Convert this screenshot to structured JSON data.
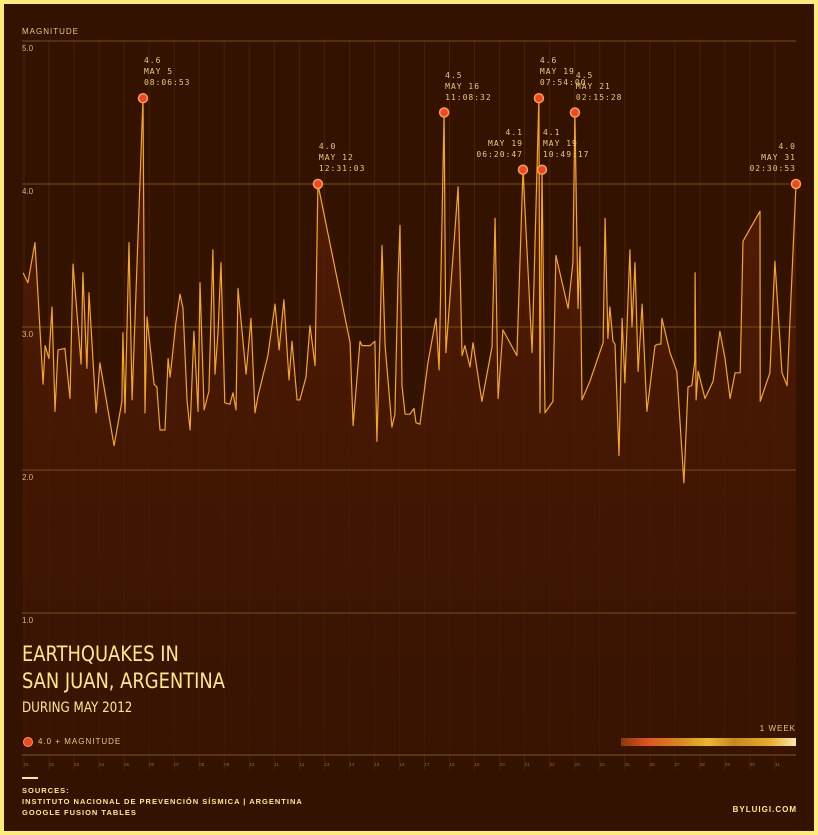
{
  "chart_data": {
    "type": "line",
    "title": "EARTHQUAKES IN SAN JUAN, ARGENTINA",
    "title_lines": [
      "EARTHQUAKES IN",
      "SAN JUAN, ARGENTINA"
    ],
    "subtitle": "DURING MAY 2012",
    "ylabel": "MAGNITUDE",
    "ylim": [
      1.0,
      5.0
    ],
    "yticks": [
      "1.0",
      "2.0",
      "3.0",
      "4.0",
      "5.0"
    ],
    "xticks": [
      "01",
      "02",
      "03",
      "04",
      "05",
      "06",
      "07",
      "08",
      "09",
      "10",
      "11",
      "12",
      "13",
      "14",
      "15",
      "16",
      "17",
      "18",
      "19",
      "20",
      "21",
      "22",
      "23",
      "24",
      "25",
      "26",
      "27",
      "28",
      "29",
      "30",
      "31"
    ],
    "grid": true,
    "colors": {
      "line": "#f5a623",
      "highlight": "#f2462a",
      "background": "#331300",
      "frame": "#fdeb7a",
      "text": "#fde883"
    },
    "series": [
      {
        "points": [
          [
            0.61,
            3.38
          ],
          [
            0.8,
            3.31
          ],
          [
            1.08,
            3.59
          ],
          [
            1.4,
            2.6
          ],
          [
            1.48,
            2.87
          ],
          [
            1.63,
            2.78
          ],
          [
            1.75,
            3.14
          ],
          [
            1.87,
            2.41
          ],
          [
            1.99,
            2.84
          ],
          [
            2.26,
            2.85
          ],
          [
            2.46,
            2.5
          ],
          [
            2.58,
            3.44
          ],
          [
            2.9,
            2.74
          ],
          [
            2.97,
            3.38
          ],
          [
            3.13,
            2.71
          ],
          [
            3.21,
            3.24
          ],
          [
            3.49,
            2.4
          ],
          [
            3.64,
            2.75
          ],
          [
            4.2,
            2.17
          ],
          [
            4.51,
            2.48
          ],
          [
            4.55,
            2.96
          ],
          [
            4.63,
            2.4
          ],
          [
            4.79,
            3.59
          ],
          [
            4.91,
            2.49
          ],
          [
            5.34,
            4.6
          ],
          [
            5.42,
            2.4
          ],
          [
            5.5,
            3.07
          ],
          [
            5.78,
            2.6
          ],
          [
            5.89,
            2.58
          ],
          [
            6.01,
            2.28
          ],
          [
            6.21,
            2.28
          ],
          [
            6.33,
            2.78
          ],
          [
            6.41,
            2.65
          ],
          [
            6.64,
            3.03
          ],
          [
            6.8,
            3.23
          ],
          [
            6.92,
            3.13
          ],
          [
            7.08,
            2.48
          ],
          [
            7.2,
            2.28
          ],
          [
            7.35,
            2.97
          ],
          [
            7.51,
            2.41
          ],
          [
            7.59,
            3.31
          ],
          [
            7.75,
            2.42
          ],
          [
            7.94,
            2.55
          ],
          [
            8.1,
            3.54
          ],
          [
            8.18,
            2.67
          ],
          [
            8.3,
            2.96
          ],
          [
            8.42,
            3.45
          ],
          [
            8.57,
            2.47
          ],
          [
            8.77,
            2.46
          ],
          [
            8.89,
            2.54
          ],
          [
            9.01,
            2.42
          ],
          [
            9.09,
            3.27
          ],
          [
            9.41,
            2.67
          ],
          [
            9.6,
            3.06
          ],
          [
            9.76,
            2.4
          ],
          [
            9.88,
            2.52
          ],
          [
            10.27,
            2.8
          ],
          [
            10.55,
            3.16
          ],
          [
            10.71,
            2.84
          ],
          [
            10.9,
            3.19
          ],
          [
            11.1,
            2.63
          ],
          [
            11.22,
            2.9
          ],
          [
            11.42,
            2.49
          ],
          [
            11.53,
            2.49
          ],
          [
            11.77,
            2.65
          ],
          [
            11.93,
            3.01
          ],
          [
            12.13,
            2.73
          ],
          [
            12.24,
            4.0
          ],
          [
            13.51,
            2.89
          ],
          [
            13.63,
            2.31
          ],
          [
            13.9,
            2.9
          ],
          [
            13.98,
            2.87
          ],
          [
            14.3,
            2.87
          ],
          [
            14.49,
            2.9
          ],
          [
            14.57,
            2.2
          ],
          [
            14.69,
            2.94
          ],
          [
            14.77,
            3.57
          ],
          [
            14.89,
            2.87
          ],
          [
            15.16,
            2.3
          ],
          [
            15.28,
            2.39
          ],
          [
            15.4,
            3.33
          ],
          [
            15.48,
            3.71
          ],
          [
            15.56,
            2.59
          ],
          [
            15.68,
            2.39
          ],
          [
            15.87,
            2.39
          ],
          [
            16.03,
            2.43
          ],
          [
            16.11,
            2.33
          ],
          [
            16.27,
            2.32
          ],
          [
            16.58,
            2.75
          ],
          [
            16.9,
            3.06
          ],
          [
            17.02,
            2.7
          ],
          [
            17.22,
            4.5
          ],
          [
            17.29,
            2.82
          ],
          [
            17.77,
            3.98
          ],
          [
            17.93,
            2.8
          ],
          [
            18.04,
            2.87
          ],
          [
            18.24,
            2.72
          ],
          [
            18.36,
            2.89
          ],
          [
            18.71,
            2.48
          ],
          [
            19.11,
            2.86
          ],
          [
            19.23,
            3.76
          ],
          [
            19.35,
            2.5
          ],
          [
            19.54,
            2.98
          ],
          [
            20.09,
            2.8
          ],
          [
            20.33,
            4.1
          ],
          [
            20.69,
            2.82
          ],
          [
            20.96,
            4.6
          ],
          [
            21.0,
            2.4
          ],
          [
            21.08,
            4.1
          ],
          [
            21.2,
            2.4
          ],
          [
            21.51,
            2.48
          ],
          [
            21.63,
            3.5
          ],
          [
            22.11,
            3.13
          ],
          [
            22.3,
            3.45
          ],
          [
            22.38,
            4.5
          ],
          [
            22.5,
            3.13
          ],
          [
            22.58,
            3.56
          ],
          [
            22.66,
            2.49
          ],
          [
            22.97,
            2.62
          ],
          [
            23.49,
            2.89
          ],
          [
            23.57,
            3.76
          ],
          [
            23.68,
            2.92
          ],
          [
            23.76,
            3.14
          ],
          [
            23.88,
            2.9
          ],
          [
            23.96,
            2.88
          ],
          [
            24.12,
            2.1
          ],
          [
            24.24,
            3.06
          ],
          [
            24.35,
            2.61
          ],
          [
            24.55,
            3.54
          ],
          [
            24.63,
            3.0
          ],
          [
            24.75,
            3.45
          ],
          [
            24.87,
            2.69
          ],
          [
            25.03,
            3.16
          ],
          [
            25.22,
            2.41
          ],
          [
            25.54,
            2.87
          ],
          [
            25.66,
            2.88
          ],
          [
            25.77,
            2.88
          ],
          [
            25.81,
            3.06
          ],
          [
            26.13,
            2.82
          ],
          [
            26.4,
            2.69
          ],
          [
            26.68,
            1.91
          ],
          [
            26.84,
            2.58
          ],
          [
            26.99,
            2.59
          ],
          [
            27.11,
            2.76
          ],
          [
            27.12,
            3.38
          ],
          [
            27.16,
            2.49
          ],
          [
            27.24,
            2.69
          ],
          [
            27.51,
            2.5
          ],
          [
            27.83,
            2.62
          ],
          [
            28.1,
            2.97
          ],
          [
            28.3,
            2.78
          ],
          [
            28.5,
            2.5
          ],
          [
            28.7,
            2.68
          ],
          [
            28.9,
            2.68
          ],
          [
            29.01,
            3.6
          ],
          [
            29.68,
            3.81
          ],
          [
            29.69,
            2.48
          ],
          [
            30.07,
            2.68
          ],
          [
            30.27,
            3.46
          ],
          [
            30.55,
            2.68
          ],
          [
            30.75,
            2.59
          ],
          [
            31.1,
            4.0
          ]
        ]
      }
    ],
    "annotations": [
      {
        "mag": "4.6",
        "date": "MAY 5",
        "time": "08:06:53",
        "x": 5.34,
        "y": 4.6,
        "align": "left"
      },
      {
        "mag": "4.0",
        "date": "MAY 12",
        "time": "12:31:03",
        "x": 12.24,
        "y": 4.0,
        "align": "left"
      },
      {
        "mag": "4.5",
        "date": "MAY 16",
        "time": "11:08:32",
        "x": 17.22,
        "y": 4.5,
        "align": "left"
      },
      {
        "mag": "4.1",
        "date": "MAY 19",
        "time": "06:20:47",
        "x": 20.33,
        "y": 4.1,
        "align": "right"
      },
      {
        "mag": "4.6",
        "date": "MAY 19",
        "time": "07:54:00",
        "x": 20.96,
        "y": 4.6,
        "align": "left"
      },
      {
        "mag": "4.1",
        "date": "MAY 19",
        "time": "10:49:17",
        "x": 21.08,
        "y": 4.1,
        "align": "left"
      },
      {
        "mag": "4.5",
        "date": "MAY 21",
        "time": "02:15:28",
        "x": 22.38,
        "y": 4.5,
        "align": "left"
      },
      {
        "mag": "4.0",
        "date": "MAY 31",
        "time": "02:30:53",
        "x": 31.1,
        "y": 4.0,
        "align": "right"
      }
    ]
  },
  "legend": {
    "highlight_label": "4.0 + MAGNITUDE",
    "scale_label": "1 WEEK"
  },
  "sources": {
    "heading": "SOURCES:",
    "line1": "INSTITUTO NACIONAL DE PREVENCIÓN SÍSMICA  |  ARGENTINA",
    "line2": "GOOGLE FUSION TABLES"
  },
  "credit": "BYLUIGI.COM"
}
